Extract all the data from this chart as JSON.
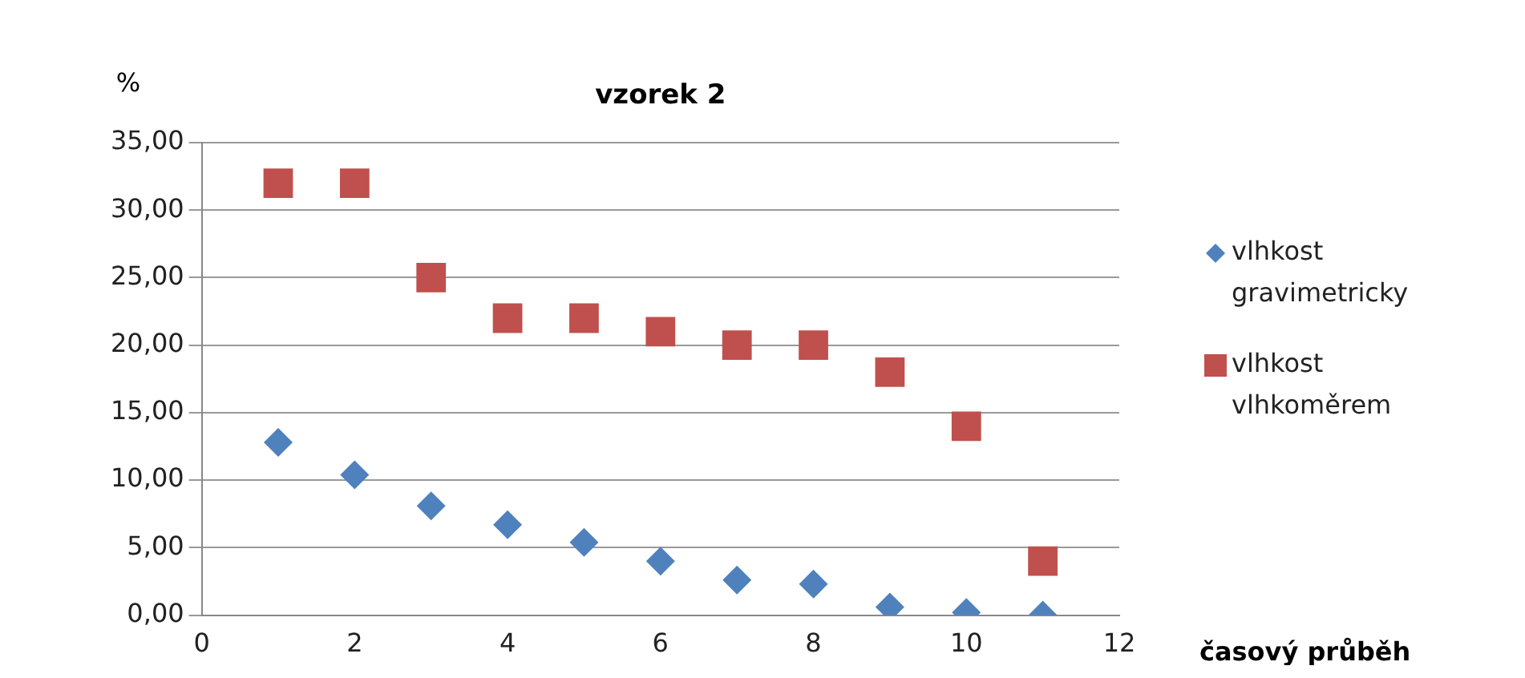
{
  "chart_data": {
    "type": "scatter",
    "title": "vzorek 2",
    "xlabel": "časový průběh",
    "ylabel": "%",
    "x": [
      1,
      2,
      3,
      4,
      5,
      6,
      7,
      8,
      9,
      10,
      11
    ],
    "series": [
      {
        "name": "vlhkost gravimetricky",
        "color": "#4f81bd",
        "marker": "diamond",
        "values": [
          12.8,
          10.4,
          8.1,
          6.7,
          5.4,
          4.0,
          2.6,
          2.3,
          0.6,
          0.2,
          0.0
        ]
      },
      {
        "name": "vlhkost vlhkoměrem",
        "color": "#c0504d",
        "marker": "square",
        "values": [
          32,
          32,
          25,
          22,
          22,
          21,
          20,
          20,
          18,
          14,
          4
        ]
      }
    ],
    "xlim": [
      0,
      12
    ],
    "xticks": [
      0,
      2,
      4,
      6,
      8,
      10,
      12
    ],
    "ylim": [
      0,
      35
    ],
    "yticks": [
      {
        "value": 0,
        "label": "0,00"
      },
      {
        "value": 5,
        "label": "5,00"
      },
      {
        "value": 10,
        "label": "10,00"
      },
      {
        "value": 15,
        "label": "15,00"
      },
      {
        "value": 20,
        "label": "20,00"
      },
      {
        "value": 25,
        "label": "25,00"
      },
      {
        "value": 30,
        "label": "30,00"
      },
      {
        "value": 35,
        "label": "35,00"
      }
    ],
    "grid": "y",
    "legend": "right"
  }
}
